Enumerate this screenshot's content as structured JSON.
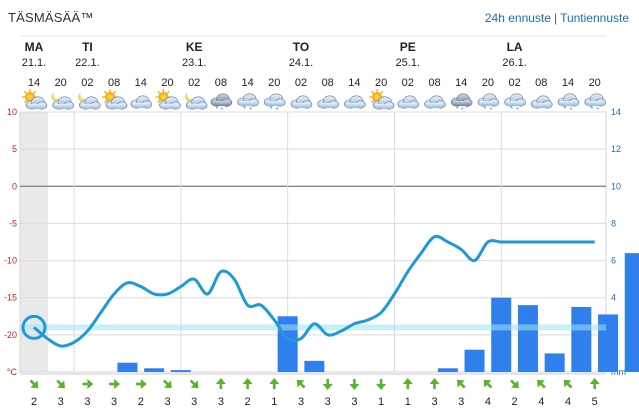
{
  "header": {
    "brand": "TÄSMÄSÄÄ™",
    "link_forecast": "24h ennuste",
    "separator": "|",
    "link_hourly": "Tuntiennuste"
  },
  "days": [
    {
      "name": "MA",
      "date": "21.1."
    },
    {
      "name": "TI",
      "date": "22.1."
    },
    {
      "name": "KE",
      "date": "23.1."
    },
    {
      "name": "TO",
      "date": "24.1."
    },
    {
      "name": "PE",
      "date": "25.1."
    },
    {
      "name": "LA",
      "date": "26.1."
    }
  ],
  "hours": [
    "14",
    "20",
    "02",
    "08",
    "14",
    "20",
    "02",
    "08",
    "14",
    "20",
    "02",
    "08",
    "14",
    "20",
    "02",
    "08",
    "14",
    "20",
    "02",
    "08",
    "14",
    "20"
  ],
  "weather_icons": [
    "sun-cloud-icon",
    "cloud-night-icon",
    "cloud-night-icon",
    "sun-cloud-icon",
    "cloud-icon",
    "sun-cloud-icon",
    "cloud-night-icon",
    "snow-cloud-icon",
    "cloud-snow-icon",
    "cloud-snow-icon",
    "cloud-icon",
    "cloud-icon",
    "cloud-icon",
    "sun-cloud-icon",
    "cloud-icon",
    "cloud-icon",
    "snow-cloud-icon",
    "cloud-snow-icon",
    "cloud-snow-icon",
    "cloud-icon",
    "cloud-snow-icon",
    "cloud-snow-icon"
  ],
  "wind": {
    "speeds": [
      2,
      3,
      3,
      3,
      2,
      3,
      3,
      3,
      2,
      1,
      3,
      3,
      3,
      1,
      1,
      3,
      3,
      4,
      2,
      4,
      4,
      5
    ],
    "directions": [
      "SE",
      "SE",
      "E",
      "E",
      "E",
      "SE",
      "SE",
      "N",
      "N",
      "N",
      "NW",
      "S",
      "S",
      "S",
      "N",
      "N",
      "NW",
      "NW",
      "SE",
      "NW",
      "NW",
      "N"
    ]
  },
  "chart_data": {
    "type": "line",
    "left_axis": {
      "unit": "°C",
      "ticks": [
        10,
        5,
        0,
        -5,
        -10,
        -15,
        -20
      ],
      "ylim": [
        -25,
        10
      ]
    },
    "right_axis": {
      "unit": "mm",
      "ticks": [
        14,
        12,
        10,
        8,
        6,
        4,
        2
      ],
      "ylim": [
        0,
        14
      ]
    },
    "temperature": {
      "x": [
        0,
        0.5,
        1,
        1.5,
        2,
        2.5,
        3,
        3.5,
        4,
        4.5,
        5,
        5.5,
        6,
        6.5,
        7,
        7.5,
        8,
        8.5,
        9,
        9.5,
        10,
        10.5,
        11,
        11.5,
        12,
        12.5,
        13,
        13.5,
        14,
        14.5,
        15,
        15.5,
        16,
        16.5,
        17,
        17.5,
        18,
        18.5,
        19,
        19.5,
        20,
        20.5,
        21
      ],
      "y": [
        -19,
        -20.5,
        -21.5,
        -21,
        -19.5,
        -17,
        -14.5,
        -13,
        -13.5,
        -14.5,
        -14.5,
        -13.5,
        -12.5,
        -14.5,
        -11.5,
        -12.5,
        -16,
        -16,
        -18,
        -20.5,
        -20.5,
        -18.5,
        -20,
        -19.5,
        -18.5,
        -18,
        -17,
        -14.5,
        -11.5,
        -9,
        -6.8,
        -7.5,
        -8.5,
        -10,
        -7.5,
        -7.5,
        -7.5,
        -7.5,
        -7.5,
        -7.5,
        -7.5,
        -7.5,
        -7.5
      ]
    },
    "precipitation_mm": [
      0,
      0,
      0,
      0.5,
      0.2,
      0.1,
      0,
      0,
      0,
      3,
      0.6,
      0,
      0,
      0,
      0,
      0.2,
      1.2,
      4,
      3.6,
      1,
      3.5,
      3.1,
      6.4
    ],
    "current_temperature": -19
  }
}
